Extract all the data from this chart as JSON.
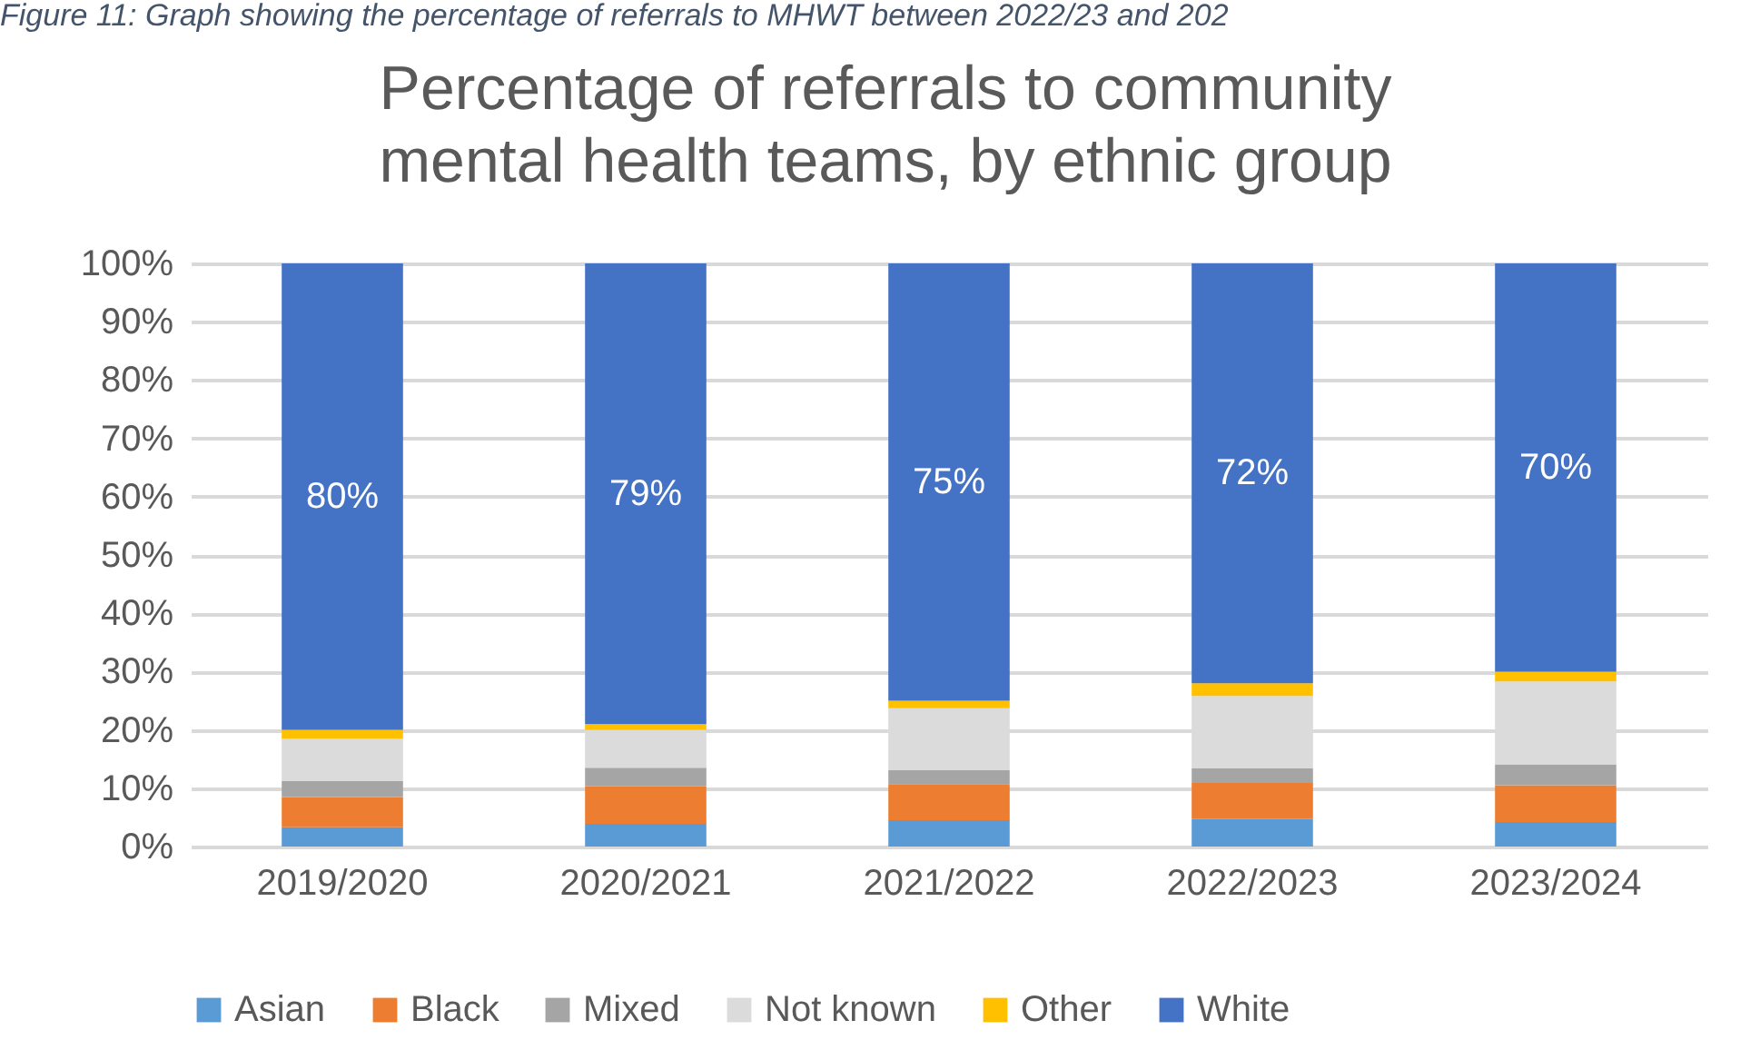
{
  "chart_data": {
    "type": "bar",
    "stacked": true,
    "title": "Percentage of referrals to community mental health teams, by ethnic group",
    "annotations": [
      "Figure 11: Graph showing the percentage of referrals to MHWT between 2022/23 and 202"
    ],
    "categories": [
      "2019/2020",
      "2020/2021",
      "2021/2022",
      "2022/2023",
      "2023/2024"
    ],
    "series": [
      {
        "name": "Asian",
        "color": "#5b9bd5",
        "values": [
          3.3,
          3.9,
          4.5,
          4.7,
          4.2
        ]
      },
      {
        "name": "Black",
        "color": "#ed7d31",
        "values": [
          5.2,
          6.4,
          6.2,
          6.2,
          6.3
        ]
      },
      {
        "name": "Mixed",
        "color": "#a5a5a5",
        "values": [
          2.7,
          3.2,
          2.4,
          2.5,
          3.6
        ]
      },
      {
        "name": "Not known",
        "color": "#dbdbdb",
        "values": [
          7.3,
          6.5,
          10.6,
          12.4,
          14.2
        ]
      },
      {
        "name": "Other",
        "color": "#ffc000",
        "values": [
          1.5,
          1.0,
          1.3,
          2.2,
          1.7
        ]
      },
      {
        "name": "White",
        "color": "#4472c4",
        "values": [
          80,
          79,
          75,
          72,
          70
        ],
        "value_labels": [
          "80%",
          "79%",
          "75%",
          "72%",
          "70%"
        ]
      }
    ],
    "ylim": [
      0,
      100
    ],
    "yticks": [
      {
        "value": 0,
        "label": "0%"
      },
      {
        "value": 10,
        "label": "10%"
      },
      {
        "value": 20,
        "label": "20%"
      },
      {
        "value": 30,
        "label": "30%"
      },
      {
        "value": 40,
        "label": "40%"
      },
      {
        "value": 50,
        "label": "50%"
      },
      {
        "value": 60,
        "label": "60%"
      },
      {
        "value": 70,
        "label": "70%"
      },
      {
        "value": 80,
        "label": "80%"
      },
      {
        "value": 90,
        "label": "90%"
      },
      {
        "value": 100,
        "label": "100%"
      }
    ],
    "grid": "y",
    "legend": "bottom"
  }
}
